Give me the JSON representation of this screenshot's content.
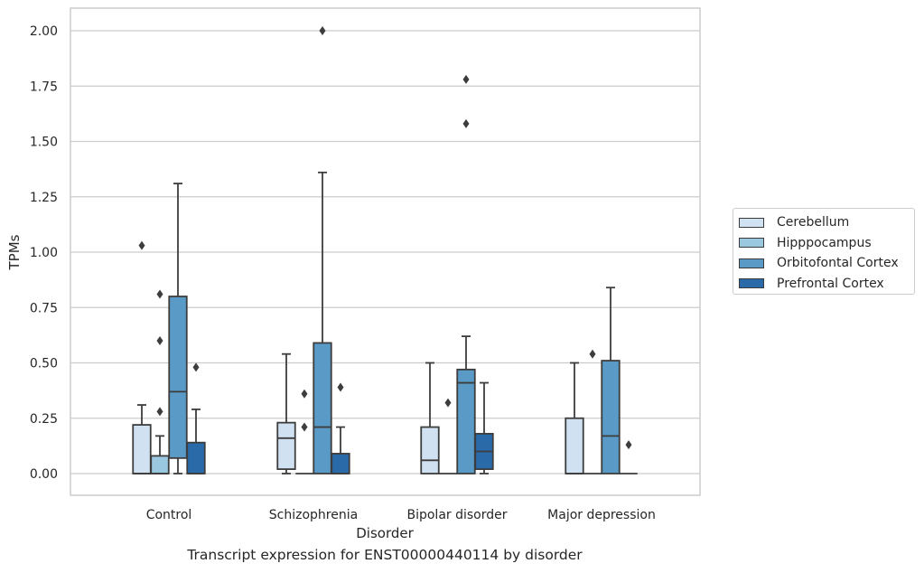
{
  "chart_data": {
    "type": "box",
    "caption": "Transcript expression for ENST00000440114 by disorder",
    "xlabel": "Disorder",
    "ylabel": "TPMs",
    "ylim": [
      -0.1,
      2.1
    ],
    "yticks": [
      "0.00",
      "0.25",
      "0.50",
      "0.75",
      "1.00",
      "1.25",
      "1.50",
      "1.75",
      "2.00"
    ],
    "grid": true,
    "legend_position": "right",
    "categories": [
      "Control",
      "Schizophrenia",
      "Bipolar disorder",
      "Major depression"
    ],
    "series": [
      {
        "name": "Cerebellum",
        "color": "#d0e1f2",
        "boxes": [
          {
            "whislo": 0.0,
            "q1": 0.0,
            "med": 0.0,
            "q3": 0.22,
            "whishi": 0.31,
            "fliers": [
              1.03
            ]
          },
          {
            "whislo": 0.0,
            "q1": 0.02,
            "med": 0.16,
            "q3": 0.23,
            "whishi": 0.54,
            "fliers": []
          },
          {
            "whislo": 0.0,
            "q1": 0.0,
            "med": 0.06,
            "q3": 0.21,
            "whishi": 0.5,
            "fliers": []
          },
          {
            "whislo": 0.0,
            "q1": 0.0,
            "med": 0.0,
            "q3": 0.25,
            "whishi": 0.5,
            "fliers": []
          }
        ]
      },
      {
        "name": "Hipppocampus",
        "color": "#9ac8e0",
        "boxes": [
          {
            "whislo": 0.0,
            "q1": 0.0,
            "med": 0.0,
            "q3": 0.08,
            "whishi": 0.17,
            "fliers": [
              0.28,
              0.6,
              0.81
            ]
          },
          {
            "whislo": 0.0,
            "q1": 0.0,
            "med": 0.0,
            "q3": 0.0,
            "whishi": 0.0,
            "fliers": [
              0.21,
              0.36
            ]
          },
          {
            "whislo": 0.0,
            "q1": 0.0,
            "med": 0.0,
            "q3": 0.0,
            "whishi": 0.0,
            "fliers": [
              0.32
            ]
          },
          {
            "whislo": 0.0,
            "q1": 0.0,
            "med": 0.0,
            "q3": 0.0,
            "whishi": 0.0,
            "fliers": [
              0.54
            ]
          }
        ]
      },
      {
        "name": "Orbitofontal Cortex",
        "color": "#5a9ac6",
        "boxes": [
          {
            "whislo": 0.0,
            "q1": 0.07,
            "med": 0.37,
            "q3": 0.8,
            "whishi": 1.31,
            "fliers": []
          },
          {
            "whislo": 0.0,
            "q1": 0.0,
            "med": 0.21,
            "q3": 0.59,
            "whishi": 1.36,
            "fliers": [
              2.0
            ]
          },
          {
            "whislo": 0.0,
            "q1": 0.0,
            "med": 0.41,
            "q3": 0.47,
            "whishi": 0.62,
            "fliers": [
              1.58,
              1.78
            ]
          },
          {
            "whislo": 0.0,
            "q1": 0.0,
            "med": 0.17,
            "q3": 0.51,
            "whishi": 0.84,
            "fliers": []
          }
        ]
      },
      {
        "name": "Prefrontal Cortex",
        "color": "#2a6aa9",
        "boxes": [
          {
            "whislo": 0.0,
            "q1": 0.0,
            "med": 0.0,
            "q3": 0.14,
            "whishi": 0.29,
            "fliers": [
              0.48
            ]
          },
          {
            "whislo": 0.0,
            "q1": 0.0,
            "med": 0.0,
            "q3": 0.09,
            "whishi": 0.21,
            "fliers": [
              0.39
            ]
          },
          {
            "whislo": 0.0,
            "q1": 0.02,
            "med": 0.1,
            "q3": 0.18,
            "whishi": 0.41,
            "fliers": []
          },
          {
            "whislo": 0.0,
            "q1": 0.0,
            "med": 0.0,
            "q3": 0.0,
            "whishi": 0.0,
            "fliers": [
              0.13
            ]
          }
        ]
      }
    ]
  }
}
